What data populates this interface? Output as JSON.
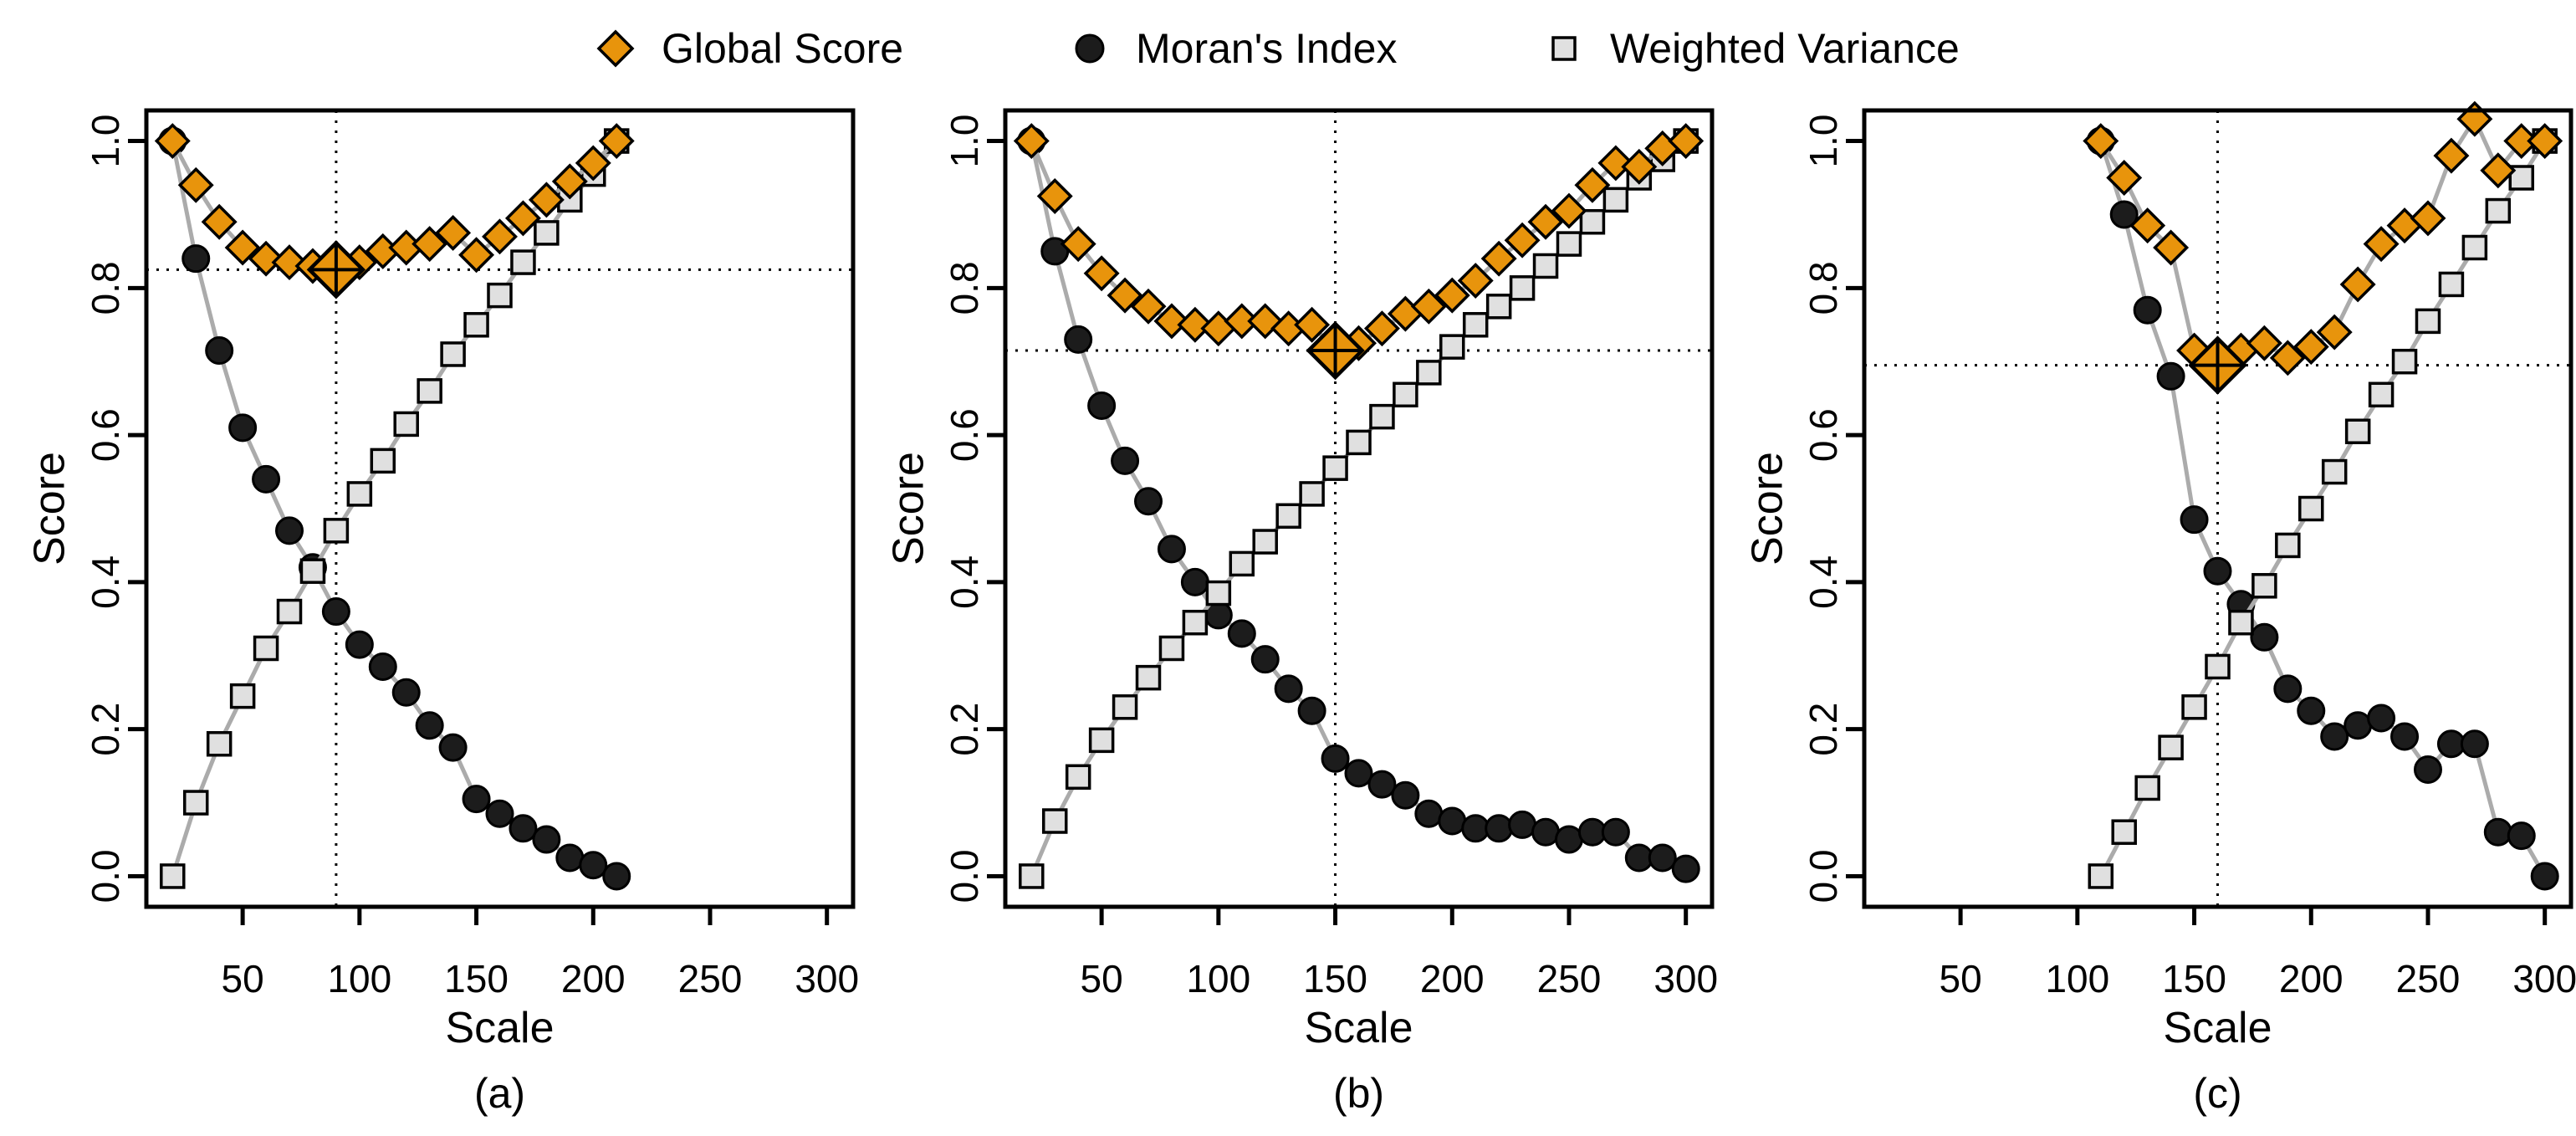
{
  "page": {
    "background": "#ffffff"
  },
  "colors": {
    "global_score_fill": "#E8940C",
    "morans_index_fill": "#1c1c1c",
    "weighted_variance_fill": "#E0E0E0",
    "marker_stroke": "#000000",
    "series_line": "#ABABAB",
    "axis": "#000000",
    "ref_line": "#000000"
  },
  "legend": {
    "items": [
      {
        "label": "Global Score",
        "marker": "diamond-icon"
      },
      {
        "label": "Moran's Index",
        "marker": "circle-icon"
      },
      {
        "label": "Weighted Variance",
        "marker": "square-icon"
      }
    ]
  },
  "axes": {
    "xlabel": "Scale",
    "ylabel": "Score",
    "x_ticks": [
      50,
      100,
      150,
      200,
      250,
      300
    ],
    "y_ticks": [
      "0.0",
      "0.2",
      "0.4",
      "0.6",
      "0.8",
      "1.0"
    ],
    "xlim": [
      20,
      300
    ],
    "ylim": [
      0,
      1
    ]
  },
  "chart_data": [
    {
      "type": "line",
      "panel_label": "(a)",
      "x": [
        20,
        30,
        40,
        50,
        60,
        70,
        80,
        90,
        100,
        110,
        120,
        130,
        140,
        150,
        160,
        170,
        180,
        190,
        200,
        210
      ],
      "series": [
        {
          "name": "Global Score",
          "values": [
            1.0,
            0.94,
            0.89,
            0.855,
            0.84,
            0.835,
            0.83,
            0.825,
            0.835,
            0.85,
            0.855,
            0.86,
            0.875,
            0.845,
            0.87,
            0.895,
            0.92,
            0.945,
            0.97,
            1.0
          ]
        },
        {
          "name": "Moran's Index",
          "values": [
            1.0,
            0.84,
            0.715,
            0.61,
            0.54,
            0.47,
            0.42,
            0.36,
            0.315,
            0.285,
            0.25,
            0.205,
            0.175,
            0.105,
            0.085,
            0.065,
            0.05,
            0.025,
            0.015,
            0.0
          ]
        },
        {
          "name": "Weighted Variance",
          "values": [
            0.0,
            0.1,
            0.18,
            0.245,
            0.31,
            0.36,
            0.415,
            0.47,
            0.52,
            0.565,
            0.615,
            0.66,
            0.71,
            0.75,
            0.79,
            0.835,
            0.875,
            0.92,
            0.955,
            1.0
          ]
        }
      ],
      "optimum": {
        "x": 90,
        "y": 0.825
      },
      "ref_h": 0.825,
      "ref_v": 90
    },
    {
      "type": "line",
      "panel_label": "(b)",
      "x": [
        20,
        30,
        40,
        50,
        60,
        70,
        80,
        90,
        100,
        110,
        120,
        130,
        140,
        150,
        160,
        170,
        180,
        190,
        200,
        210,
        220,
        230,
        240,
        250,
        260,
        270,
        280,
        290,
        300
      ],
      "series": [
        {
          "name": "Global Score",
          "values": [
            1.0,
            0.925,
            0.86,
            0.82,
            0.79,
            0.775,
            0.755,
            0.75,
            0.745,
            0.755,
            0.755,
            0.745,
            0.75,
            0.715,
            0.725,
            0.745,
            0.765,
            0.775,
            0.79,
            0.81,
            0.84,
            0.865,
            0.89,
            0.905,
            0.94,
            0.97,
            0.965,
            0.99,
            1.0
          ]
        },
        {
          "name": "Moran's Index",
          "values": [
            1.0,
            0.85,
            0.73,
            0.64,
            0.565,
            0.51,
            0.445,
            0.4,
            0.355,
            0.33,
            0.295,
            0.255,
            0.225,
            0.16,
            0.14,
            0.125,
            0.11,
            0.085,
            0.075,
            0.065,
            0.065,
            0.07,
            0.06,
            0.05,
            0.06,
            0.06,
            0.025,
            0.025,
            0.01
          ]
        },
        {
          "name": "Weighted Variance",
          "values": [
            0.0,
            0.075,
            0.135,
            0.185,
            0.23,
            0.27,
            0.31,
            0.345,
            0.385,
            0.425,
            0.455,
            0.49,
            0.52,
            0.555,
            0.59,
            0.625,
            0.655,
            0.685,
            0.72,
            0.75,
            0.775,
            0.8,
            0.83,
            0.86,
            0.89,
            0.92,
            0.95,
            0.975,
            1.0
          ]
        }
      ],
      "optimum": {
        "x": 150,
        "y": 0.715
      },
      "ref_h": 0.715,
      "ref_v": 150
    },
    {
      "type": "line",
      "panel_label": "(c)",
      "x": [
        110,
        120,
        130,
        140,
        150,
        160,
        170,
        180,
        190,
        200,
        210,
        220,
        230,
        240,
        250,
        260,
        270,
        280,
        290,
        300
      ],
      "series": [
        {
          "name": "Global Score",
          "values": [
            1.0,
            0.95,
            0.885,
            0.855,
            0.715,
            0.695,
            0.715,
            0.725,
            0.705,
            0.72,
            0.74,
            0.805,
            0.86,
            0.885,
            0.895,
            0.98,
            1.03,
            0.96,
            1.0,
            1.0
          ]
        },
        {
          "name": "Moran's Index",
          "values": [
            1.0,
            0.9,
            0.77,
            0.68,
            0.485,
            0.415,
            0.37,
            0.325,
            0.255,
            0.225,
            0.19,
            0.205,
            0.215,
            0.19,
            0.145,
            0.18,
            0.18,
            0.06,
            0.055,
            0.0
          ]
        },
        {
          "name": "Weighted Variance",
          "values": [
            0.0,
            0.06,
            0.12,
            0.175,
            0.23,
            0.285,
            0.345,
            0.395,
            0.45,
            0.5,
            0.55,
            0.605,
            0.655,
            0.7,
            0.755,
            0.805,
            0.855,
            0.905,
            0.95,
            1.0
          ]
        }
      ],
      "optimum": {
        "x": 160,
        "y": 0.695
      },
      "ref_h": 0.695,
      "ref_v": 160
    }
  ]
}
